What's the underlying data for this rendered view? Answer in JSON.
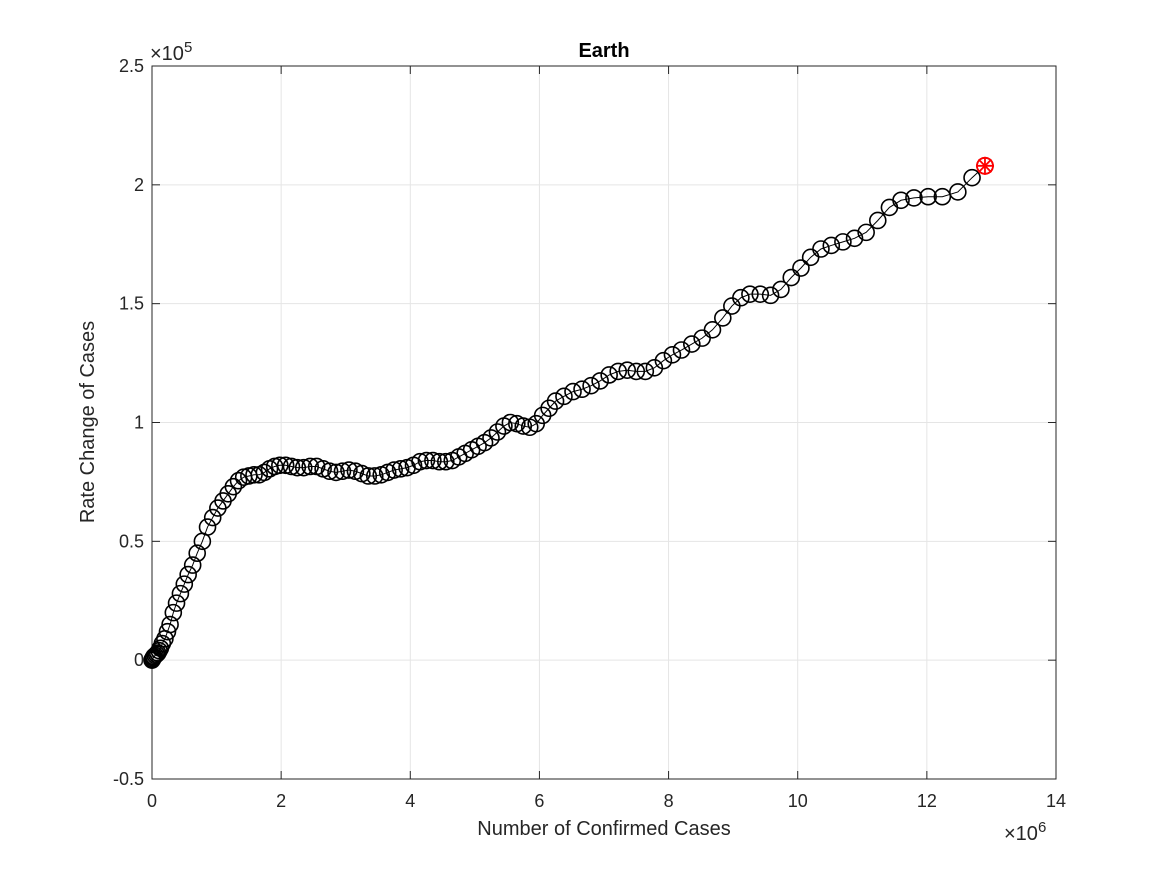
{
  "chart_data": {
    "type": "scatter",
    "title": "Earth",
    "xlabel": "Number of Confirmed Cases",
    "ylabel": "Rate Change of Cases",
    "x_exponent": "×10^6",
    "y_exponent": "×10^5",
    "x_multiplier": 1000000,
    "y_multiplier": 100000,
    "xlim": [
      0,
      14
    ],
    "ylim": [
      -0.5,
      2.5
    ],
    "x_ticks": [
      "0",
      "2",
      "4",
      "6",
      "8",
      "10",
      "12",
      "14"
    ],
    "y_ticks": [
      "-0.5",
      "0",
      "0.5",
      "1",
      "1.5",
      "2",
      "2.5"
    ],
    "grid": true,
    "colors": {
      "marker": "#000000",
      "highlight": "#ff0000",
      "grid": "#e5e5e5",
      "axis": "#262626"
    },
    "series": [
      {
        "marker": "open-circle",
        "connected": true,
        "points": [
          [
            0.0,
            0.0
          ],
          [
            0.01,
            0.005
          ],
          [
            0.02,
            0.01
          ],
          [
            0.03,
            0.015
          ],
          [
            0.05,
            0.02
          ],
          [
            0.07,
            0.025
          ],
          [
            0.09,
            0.03
          ],
          [
            0.11,
            0.04
          ],
          [
            0.13,
            0.05
          ],
          [
            0.16,
            0.07
          ],
          [
            0.2,
            0.09
          ],
          [
            0.24,
            0.12
          ],
          [
            0.28,
            0.15
          ],
          [
            0.33,
            0.2
          ],
          [
            0.38,
            0.24
          ],
          [
            0.44,
            0.28
          ],
          [
            0.5,
            0.32
          ],
          [
            0.56,
            0.36
          ],
          [
            0.63,
            0.4
          ],
          [
            0.7,
            0.45
          ],
          [
            0.78,
            0.5
          ],
          [
            0.86,
            0.56
          ],
          [
            0.94,
            0.6
          ],
          [
            1.02,
            0.64
          ],
          [
            1.1,
            0.67
          ],
          [
            1.18,
            0.7
          ],
          [
            1.26,
            0.73
          ],
          [
            1.34,
            0.755
          ],
          [
            1.42,
            0.77
          ],
          [
            1.5,
            0.775
          ],
          [
            1.58,
            0.78
          ],
          [
            1.66,
            0.78
          ],
          [
            1.74,
            0.79
          ],
          [
            1.82,
            0.805
          ],
          [
            1.9,
            0.815
          ],
          [
            1.98,
            0.82
          ],
          [
            2.07,
            0.82
          ],
          [
            2.16,
            0.815
          ],
          [
            2.25,
            0.81
          ],
          [
            2.35,
            0.81
          ],
          [
            2.45,
            0.815
          ],
          [
            2.55,
            0.815
          ],
          [
            2.65,
            0.805
          ],
          [
            2.75,
            0.795
          ],
          [
            2.85,
            0.79
          ],
          [
            2.95,
            0.795
          ],
          [
            3.05,
            0.8
          ],
          [
            3.15,
            0.795
          ],
          [
            3.25,
            0.785
          ],
          [
            3.35,
            0.775
          ],
          [
            3.45,
            0.775
          ],
          [
            3.55,
            0.78
          ],
          [
            3.65,
            0.79
          ],
          [
            3.75,
            0.8
          ],
          [
            3.85,
            0.805
          ],
          [
            3.95,
            0.81
          ],
          [
            4.05,
            0.82
          ],
          [
            4.15,
            0.835
          ],
          [
            4.25,
            0.84
          ],
          [
            4.35,
            0.84
          ],
          [
            4.45,
            0.835
          ],
          [
            4.55,
            0.835
          ],
          [
            4.65,
            0.84
          ],
          [
            4.75,
            0.855
          ],
          [
            4.85,
            0.87
          ],
          [
            4.95,
            0.885
          ],
          [
            5.05,
            0.9
          ],
          [
            5.15,
            0.915
          ],
          [
            5.25,
            0.935
          ],
          [
            5.35,
            0.96
          ],
          [
            5.45,
            0.985
          ],
          [
            5.55,
            1.0
          ],
          [
            5.65,
            0.995
          ],
          [
            5.75,
            0.985
          ],
          [
            5.85,
            0.98
          ],
          [
            5.95,
            0.995
          ],
          [
            6.05,
            1.03
          ],
          [
            6.15,
            1.06
          ],
          [
            6.25,
            1.09
          ],
          [
            6.38,
            1.11
          ],
          [
            6.52,
            1.13
          ],
          [
            6.66,
            1.14
          ],
          [
            6.8,
            1.155
          ],
          [
            6.94,
            1.175
          ],
          [
            7.08,
            1.2
          ],
          [
            7.22,
            1.215
          ],
          [
            7.36,
            1.22
          ],
          [
            7.5,
            1.215
          ],
          [
            7.64,
            1.215
          ],
          [
            7.78,
            1.23
          ],
          [
            7.92,
            1.26
          ],
          [
            8.06,
            1.285
          ],
          [
            8.2,
            1.305
          ],
          [
            8.36,
            1.33
          ],
          [
            8.52,
            1.355
          ],
          [
            8.68,
            1.39
          ],
          [
            8.84,
            1.44
          ],
          [
            8.98,
            1.49
          ],
          [
            9.12,
            1.525
          ],
          [
            9.26,
            1.54
          ],
          [
            9.42,
            1.54
          ],
          [
            9.58,
            1.535
          ],
          [
            9.74,
            1.56
          ],
          [
            9.9,
            1.61
          ],
          [
            10.05,
            1.65
          ],
          [
            10.2,
            1.695
          ],
          [
            10.36,
            1.73
          ],
          [
            10.52,
            1.745
          ],
          [
            10.7,
            1.76
          ],
          [
            10.88,
            1.775
          ],
          [
            11.06,
            1.8
          ],
          [
            11.24,
            1.85
          ],
          [
            11.42,
            1.905
          ],
          [
            11.6,
            1.935
          ],
          [
            11.8,
            1.945
          ],
          [
            12.02,
            1.95
          ],
          [
            12.24,
            1.95
          ],
          [
            12.48,
            1.97
          ],
          [
            12.7,
            2.03
          ],
          [
            12.9,
            2.08
          ]
        ]
      }
    ],
    "highlight_point": {
      "marker": "red-asterisk",
      "x": 12.9,
      "y": 2.08
    }
  }
}
